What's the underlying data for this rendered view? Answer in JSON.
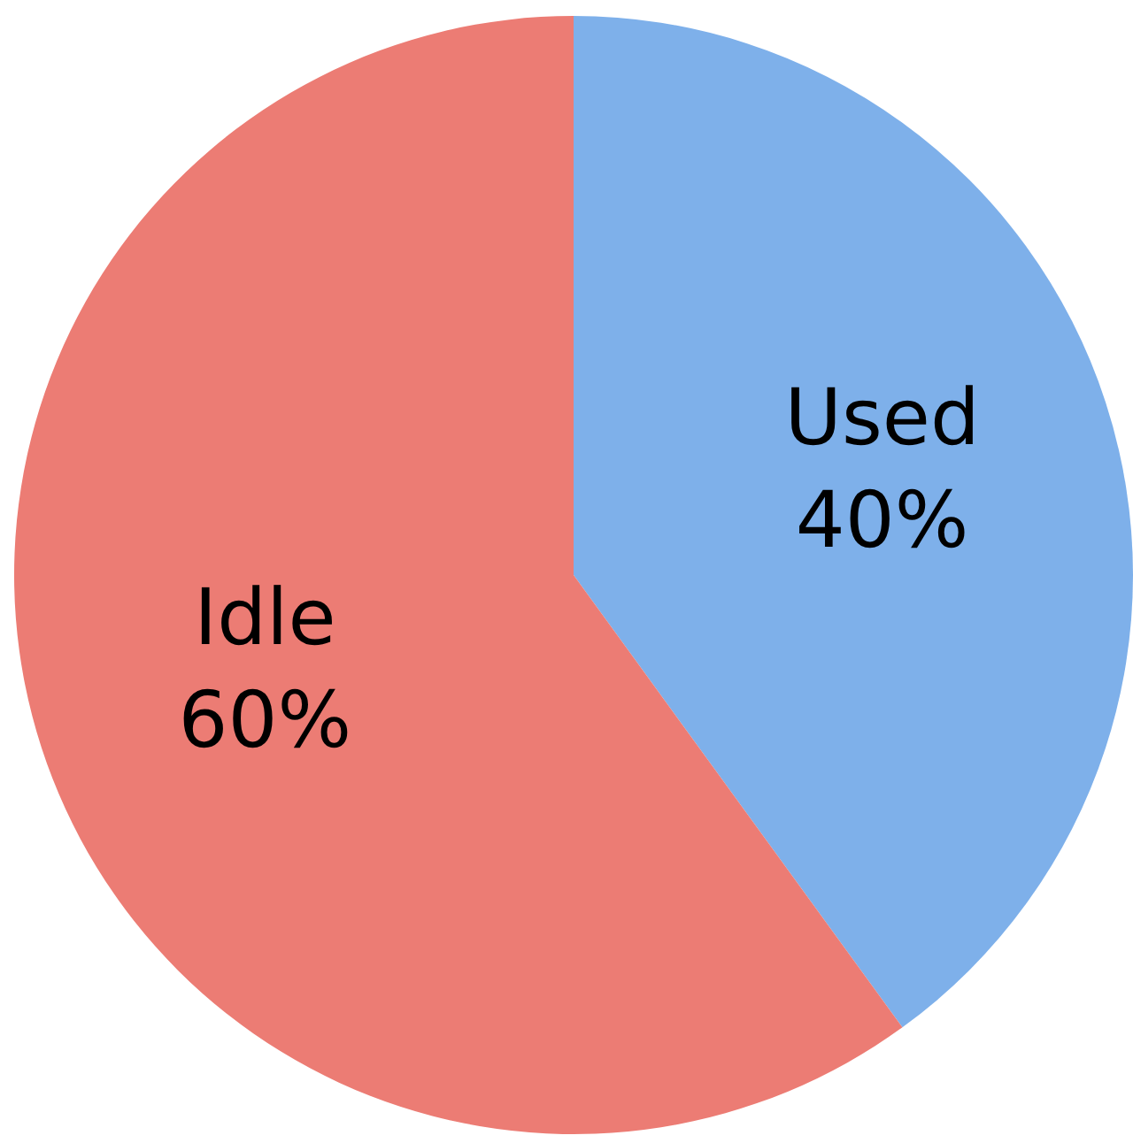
{
  "chart_data": {
    "type": "pie",
    "categories": [
      "Used",
      "Idle"
    ],
    "values": [
      40,
      60
    ],
    "colors": [
      "#7eb0ea",
      "#ec7c74"
    ],
    "value_labels": [
      "40%",
      "60%"
    ],
    "legend": false
  }
}
